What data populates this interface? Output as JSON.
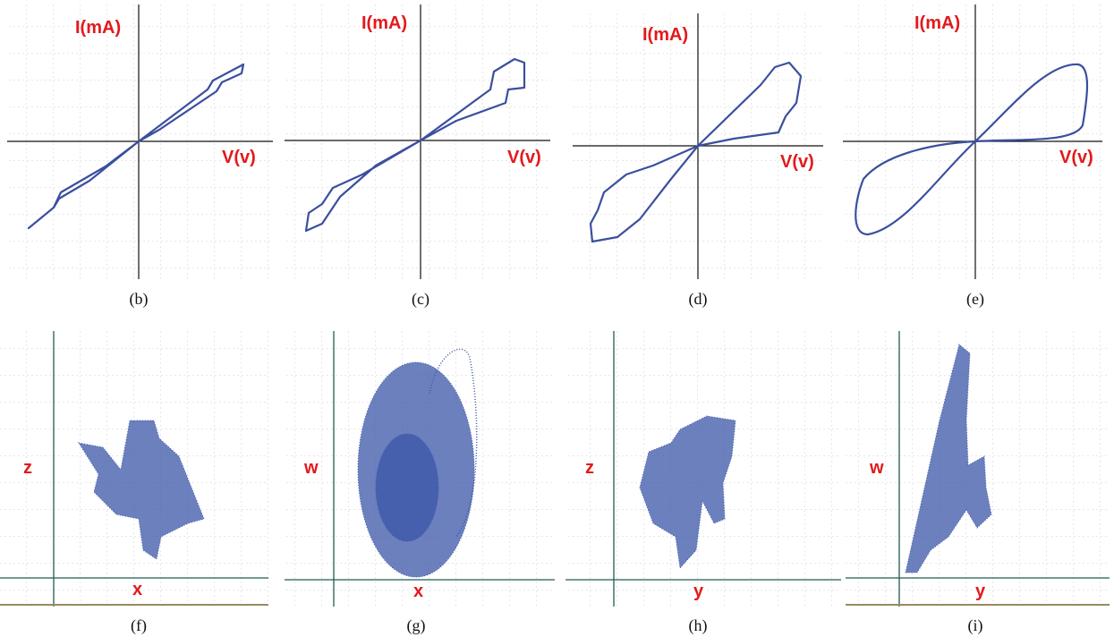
{
  "panels": [
    {
      "caption": "(b)",
      "y_label": "I(mA)",
      "x_label": "V(v)"
    },
    {
      "caption": "(c)",
      "y_label": "I(mA)",
      "x_label": "V(v)"
    },
    {
      "caption": "(d)",
      "y_label": "I(mA)",
      "x_label": "V(v)"
    },
    {
      "caption": "(e)",
      "y_label": "I(mA)",
      "x_label": "V(v)"
    },
    {
      "caption": "(f)",
      "y_label": "z",
      "x_label": "x"
    },
    {
      "caption": "(g)",
      "y_label": "w",
      "x_label": "x"
    },
    {
      "caption": "(h)",
      "y_label": "z",
      "x_label": "y"
    },
    {
      "caption": "(i)",
      "y_label": "w",
      "x_label": "y"
    }
  ]
}
